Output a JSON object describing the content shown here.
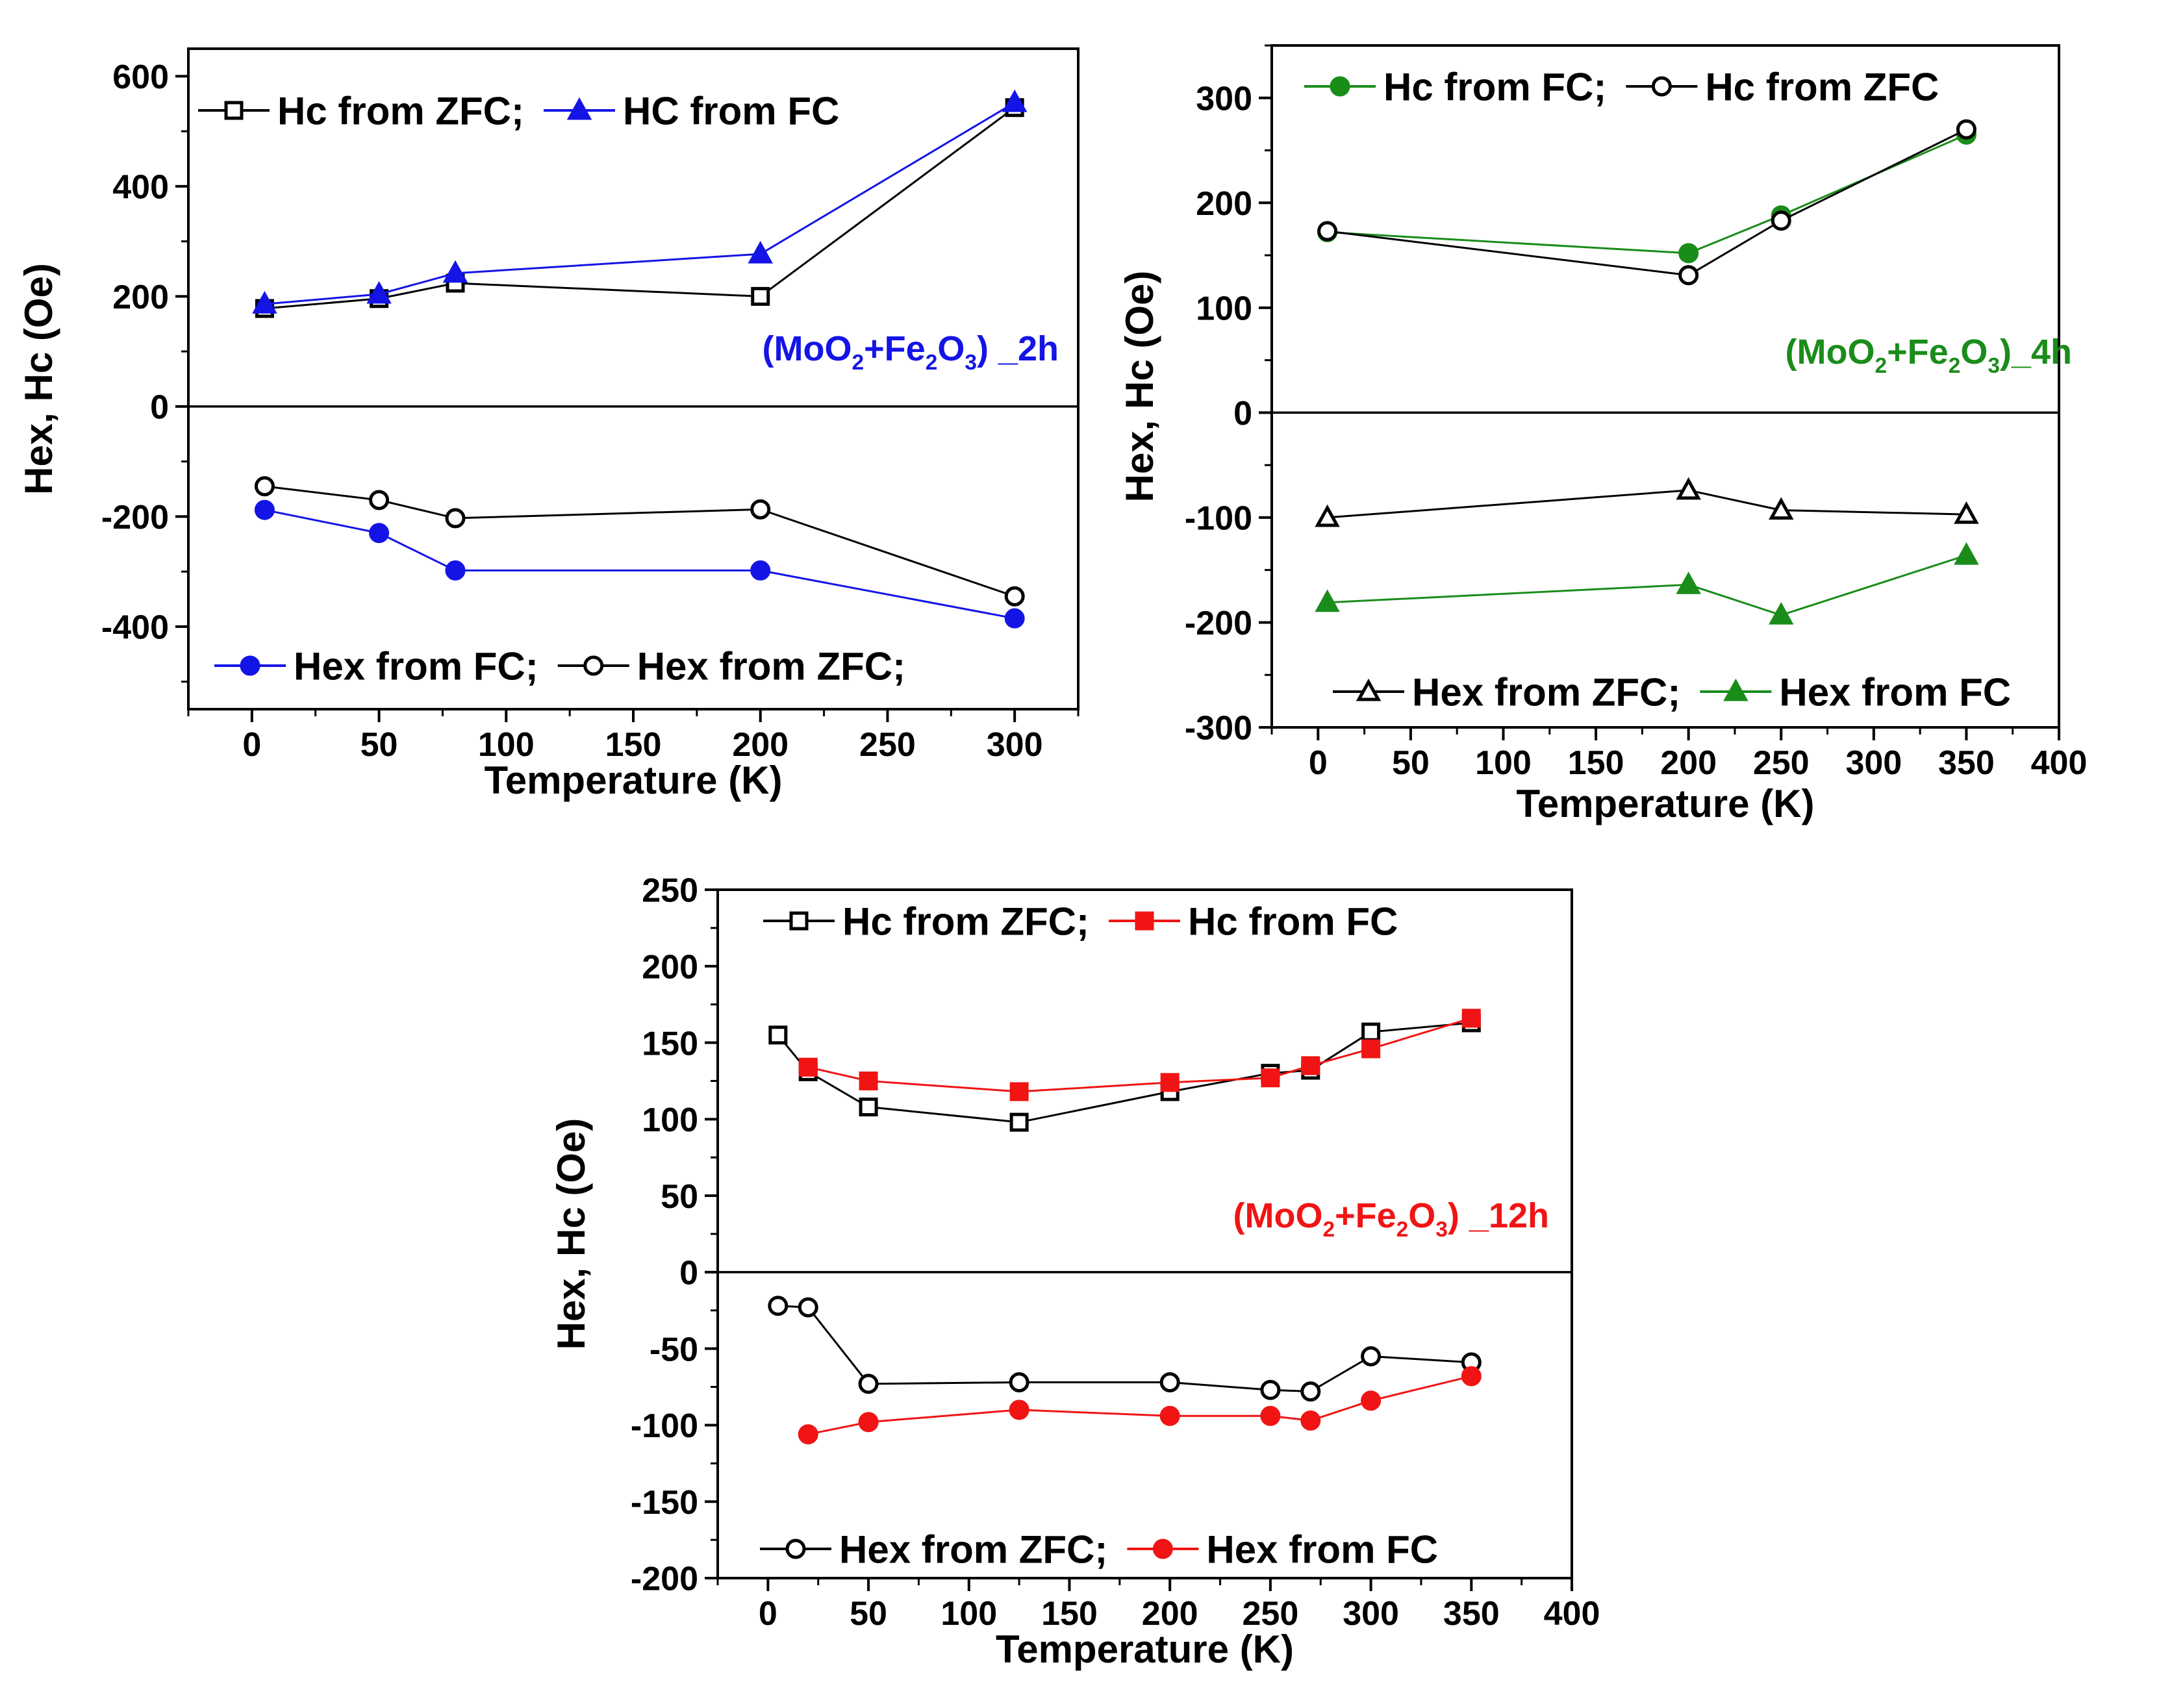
{
  "chart_data": [
    {
      "id": "panel-2h",
      "type": "line",
      "xlabel": "Temperature (K)",
      "ylabel": "Hex, Hc (Oe)",
      "xlim": [
        -25,
        325
      ],
      "ylim": [
        -550,
        650
      ],
      "xticks": [
        0,
        50,
        100,
        150,
        200,
        250,
        300
      ],
      "yticks": [
        -400,
        -200,
        0,
        200,
        400,
        600
      ],
      "sample": {
        "prefix": "(MoO",
        "sub1": "2",
        "mid": "+Fe",
        "sub2": "2",
        "mid2": "O",
        "sub3": "3",
        "suffix": ") _2h",
        "color": "#1414e6"
      },
      "legend_top": [
        "Hc from ZFC;",
        "HC from FC"
      ],
      "legend_bottom": [
        "Hex from FC;",
        "Hex from ZFC;"
      ],
      "series": [
        {
          "name": "Hc from ZFC",
          "color": "#000000",
          "marker": "square-open",
          "x": [
            5,
            50,
            80,
            200,
            300
          ],
          "y": [
            178,
            196,
            224,
            200,
            543
          ]
        },
        {
          "name": "HC from FC",
          "color": "#1414e6",
          "marker": "triangle-filled",
          "x": [
            5,
            50,
            80,
            200,
            300
          ],
          "y": [
            186,
            204,
            242,
            277,
            552
          ]
        },
        {
          "name": "Hex from FC",
          "color": "#1414e6",
          "marker": "circle-filled",
          "x": [
            5,
            50,
            80,
            200,
            300
          ],
          "y": [
            -188,
            -230,
            -298,
            -298,
            -385
          ]
        },
        {
          "name": "Hex from ZFC",
          "color": "#000000",
          "marker": "circle-open",
          "x": [
            5,
            50,
            80,
            200,
            300
          ],
          "y": [
            -145,
            -170,
            -203,
            -187,
            -345
          ]
        }
      ]
    },
    {
      "id": "panel-4h",
      "type": "line",
      "xlabel": "Temperature (K)",
      "ylabel": "Hex, Hc (Oe)",
      "xlim": [
        -25,
        400
      ],
      "ylim": [
        -300,
        350
      ],
      "xticks": [
        0,
        50,
        100,
        150,
        200,
        250,
        300,
        350,
        400
      ],
      "yticks": [
        -300,
        -200,
        -100,
        0,
        100,
        200,
        300
      ],
      "sample": {
        "prefix": "(MoO",
        "sub1": "2",
        "mid": "+Fe",
        "sub2": "2",
        "mid2": "O",
        "sub3": "3",
        "suffix": ")_4h",
        "color": "#1a8c1a"
      },
      "legend_top": [
        "Hc from FC;",
        "Hc from ZFC"
      ],
      "legend_bottom": [
        "Hex from ZFC;",
        "Hex from FC"
      ],
      "series": [
        {
          "name": "Hc from FC",
          "color": "#1a8c1a",
          "marker": "circle-filled",
          "x": [
            5,
            200,
            250,
            350
          ],
          "y": [
            172,
            152,
            188,
            265
          ]
        },
        {
          "name": "Hc from ZFC",
          "color": "#000000",
          "marker": "circle-open",
          "x": [
            5,
            200,
            250,
            350
          ],
          "y": [
            173,
            131,
            183,
            270
          ]
        },
        {
          "name": "Hex from ZFC",
          "color": "#000000",
          "marker": "triangle-open",
          "x": [
            5,
            200,
            250,
            350
          ],
          "y": [
            -100,
            -74,
            -93,
            -97
          ]
        },
        {
          "name": "Hex from FC",
          "color": "#1a8c1a",
          "marker": "triangle-filled",
          "x": [
            5,
            200,
            250,
            350
          ],
          "y": [
            -181,
            -164,
            -193,
            -136
          ]
        }
      ]
    },
    {
      "id": "panel-12h",
      "type": "line",
      "xlabel": "Temperature (K)",
      "ylabel": "Hex, Hc (Oe)",
      "xlim": [
        -25,
        400
      ],
      "ylim": [
        -200,
        250
      ],
      "xticks": [
        0,
        50,
        100,
        150,
        200,
        250,
        300,
        350,
        400
      ],
      "yticks": [
        -200,
        -150,
        -100,
        -50,
        0,
        50,
        100,
        150,
        200,
        250
      ],
      "sample": {
        "prefix": "(MoO",
        "sub1": "2",
        "mid": "+Fe",
        "sub2": "2",
        "mid2": "O",
        "sub3": "3",
        "suffix": ") _12h",
        "color": "#f01414"
      },
      "legend_top": [
        "Hc from ZFC;",
        "Hc from FC"
      ],
      "legend_bottom": [
        "Hex from ZFC;",
        "Hex from FC"
      ],
      "series": [
        {
          "name": "Hc from ZFC",
          "color": "#000000",
          "marker": "square-open",
          "x": [
            5,
            20,
            50,
            125,
            200,
            250,
            270,
            300,
            350
          ],
          "y": [
            155,
            131,
            108,
            98,
            118,
            130,
            132,
            157,
            163
          ]
        },
        {
          "name": "Hc from FC",
          "color": "#f01414",
          "marker": "square-filled",
          "x": [
            20,
            50,
            125,
            200,
            250,
            270,
            300,
            350
          ],
          "y": [
            134,
            125,
            118,
            124,
            127,
            135,
            146,
            166
          ]
        },
        {
          "name": "Hex from ZFC",
          "color": "#000000",
          "marker": "circle-open",
          "x": [
            5,
            20,
            50,
            125,
            200,
            250,
            270,
            300,
            350
          ],
          "y": [
            -22,
            -23,
            -73,
            -72,
            -72,
            -77,
            -78,
            -55,
            -59
          ]
        },
        {
          "name": "Hex from FC",
          "color": "#f01414",
          "marker": "circle-filled",
          "x": [
            20,
            50,
            125,
            200,
            250,
            270,
            300,
            350
          ],
          "y": [
            -106,
            -98,
            -90,
            -94,
            -94,
            -97,
            -84,
            -68
          ]
        }
      ]
    }
  ]
}
